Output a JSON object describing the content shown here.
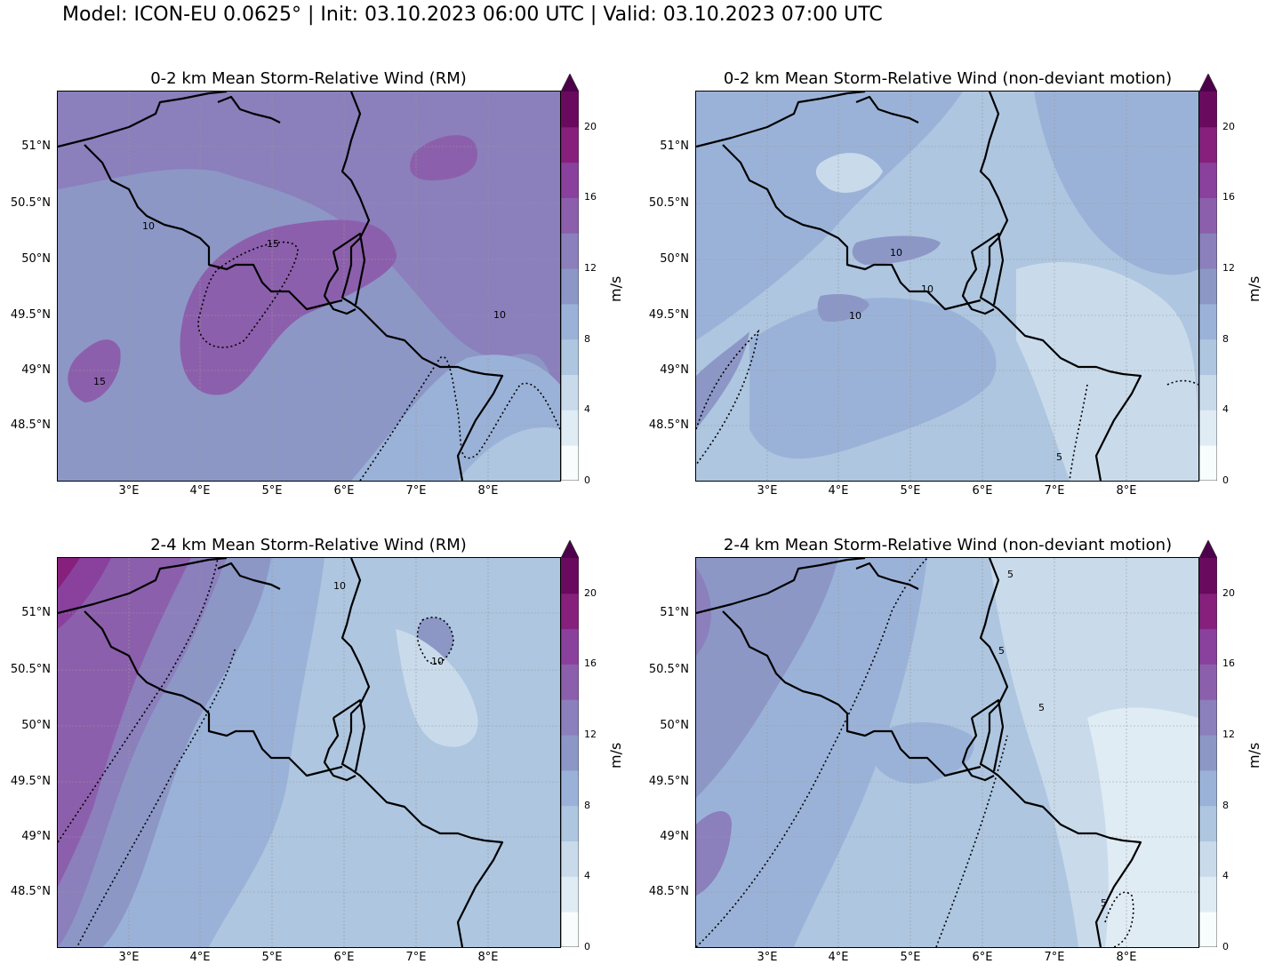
{
  "suptitle": "Model: ICON-EU 0.0625° | Init: 03.10.2023 06:00 UTC | Valid: 03.10.2023 07:00 UTC",
  "axes": {
    "lat_labels": [
      "51°N",
      "50.5°N",
      "50°N",
      "49.5°N",
      "49°N",
      "48.5°N"
    ],
    "lon_labels": [
      "3°E",
      "4°E",
      "5°E",
      "6°E",
      "7°E",
      "8°E"
    ]
  },
  "colorbar": {
    "unit": "m/s",
    "ticks": [
      "0",
      "4",
      "8",
      "12",
      "16",
      "20"
    ],
    "levels": [
      0,
      2,
      4,
      6,
      8,
      10,
      12,
      14,
      16,
      18,
      20,
      22
    ],
    "colors": [
      "#f7fcfd",
      "#e0ecf4",
      "#c9dbeb",
      "#aec6e0",
      "#9bb2d8",
      "#8c97c6",
      "#8b7fbc",
      "#8c5fac",
      "#89419d",
      "#86207c",
      "#6a0a5e",
      "#4d004b"
    ]
  },
  "panels": [
    {
      "title": "0-2 km Mean Storm-Relative Wind (RM)",
      "contour_labels": [
        "10",
        "15",
        "10",
        "15"
      ]
    },
    {
      "title": "0-2 km Mean Storm-Relative Wind (non-deviant motion)",
      "contour_labels": [
        "10",
        "10",
        "10",
        "5"
      ]
    },
    {
      "title": "2-4 km Mean Storm-Relative Wind (RM)",
      "contour_labels": [
        "10",
        "10"
      ]
    },
    {
      "title": "2-4 km Mean Storm-Relative Wind (non-deviant motion)",
      "contour_labels": [
        "5",
        "5",
        "5",
        "5"
      ]
    }
  ]
}
